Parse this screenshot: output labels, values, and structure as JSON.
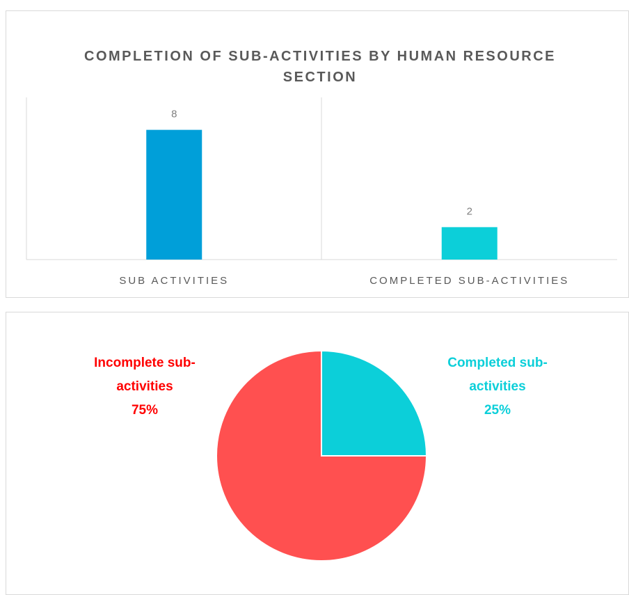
{
  "chart_data": [
    {
      "type": "bar",
      "title": "COMPLETION OF SUB-ACTIVITIES BY HUMAN RESOURCE SECTION",
      "categories": [
        "SUB ACTIVITIES",
        "COMPLETED SUB-ACTIVITIES"
      ],
      "values": [
        8,
        2
      ],
      "colors": [
        "#009fd9",
        "#0ccfd9"
      ],
      "ylim": [
        0,
        10
      ]
    },
    {
      "type": "pie",
      "categories": [
        "Completed sub-activities",
        "Incomplete sub-activities"
      ],
      "values": [
        25,
        75
      ],
      "value_labels": [
        "25%",
        "75%"
      ],
      "colors": [
        "#0ccfd9",
        "#ff5050"
      ],
      "label_colors": [
        "#0ccfd9",
        "#ff0000"
      ]
    }
  ]
}
